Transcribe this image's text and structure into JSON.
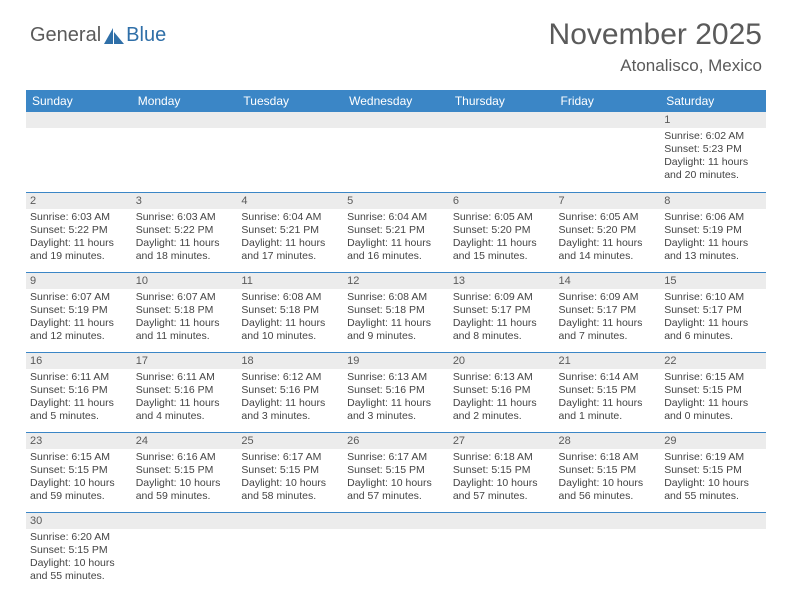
{
  "brand": {
    "part1": "General",
    "part2": "Blue"
  },
  "title": "November 2025",
  "location": "Atonalisco, Mexico",
  "colors": {
    "header_bg": "#3b86c6",
    "header_text": "#ffffff",
    "daynum_bg": "#ececec",
    "text": "#5a5a5a",
    "rule": "#3b86c6"
  },
  "weekdays": [
    "Sunday",
    "Monday",
    "Tuesday",
    "Wednesday",
    "Thursday",
    "Friday",
    "Saturday"
  ],
  "weeks": [
    [
      null,
      null,
      null,
      null,
      null,
      null,
      {
        "n": "1",
        "sr": "6:02 AM",
        "ss": "5:23 PM",
        "dl": "11 hours and 20 minutes."
      }
    ],
    [
      {
        "n": "2",
        "sr": "6:03 AM",
        "ss": "5:22 PM",
        "dl": "11 hours and 19 minutes."
      },
      {
        "n": "3",
        "sr": "6:03 AM",
        "ss": "5:22 PM",
        "dl": "11 hours and 18 minutes."
      },
      {
        "n": "4",
        "sr": "6:04 AM",
        "ss": "5:21 PM",
        "dl": "11 hours and 17 minutes."
      },
      {
        "n": "5",
        "sr": "6:04 AM",
        "ss": "5:21 PM",
        "dl": "11 hours and 16 minutes."
      },
      {
        "n": "6",
        "sr": "6:05 AM",
        "ss": "5:20 PM",
        "dl": "11 hours and 15 minutes."
      },
      {
        "n": "7",
        "sr": "6:05 AM",
        "ss": "5:20 PM",
        "dl": "11 hours and 14 minutes."
      },
      {
        "n": "8",
        "sr": "6:06 AM",
        "ss": "5:19 PM",
        "dl": "11 hours and 13 minutes."
      }
    ],
    [
      {
        "n": "9",
        "sr": "6:07 AM",
        "ss": "5:19 PM",
        "dl": "11 hours and 12 minutes."
      },
      {
        "n": "10",
        "sr": "6:07 AM",
        "ss": "5:18 PM",
        "dl": "11 hours and 11 minutes."
      },
      {
        "n": "11",
        "sr": "6:08 AM",
        "ss": "5:18 PM",
        "dl": "11 hours and 10 minutes."
      },
      {
        "n": "12",
        "sr": "6:08 AM",
        "ss": "5:18 PM",
        "dl": "11 hours and 9 minutes."
      },
      {
        "n": "13",
        "sr": "6:09 AM",
        "ss": "5:17 PM",
        "dl": "11 hours and 8 minutes."
      },
      {
        "n": "14",
        "sr": "6:09 AM",
        "ss": "5:17 PM",
        "dl": "11 hours and 7 minutes."
      },
      {
        "n": "15",
        "sr": "6:10 AM",
        "ss": "5:17 PM",
        "dl": "11 hours and 6 minutes."
      }
    ],
    [
      {
        "n": "16",
        "sr": "6:11 AM",
        "ss": "5:16 PM",
        "dl": "11 hours and 5 minutes."
      },
      {
        "n": "17",
        "sr": "6:11 AM",
        "ss": "5:16 PM",
        "dl": "11 hours and 4 minutes."
      },
      {
        "n": "18",
        "sr": "6:12 AM",
        "ss": "5:16 PM",
        "dl": "11 hours and 3 minutes."
      },
      {
        "n": "19",
        "sr": "6:13 AM",
        "ss": "5:16 PM",
        "dl": "11 hours and 3 minutes."
      },
      {
        "n": "20",
        "sr": "6:13 AM",
        "ss": "5:16 PM",
        "dl": "11 hours and 2 minutes."
      },
      {
        "n": "21",
        "sr": "6:14 AM",
        "ss": "5:15 PM",
        "dl": "11 hours and 1 minute."
      },
      {
        "n": "22",
        "sr": "6:15 AM",
        "ss": "5:15 PM",
        "dl": "11 hours and 0 minutes."
      }
    ],
    [
      {
        "n": "23",
        "sr": "6:15 AM",
        "ss": "5:15 PM",
        "dl": "10 hours and 59 minutes."
      },
      {
        "n": "24",
        "sr": "6:16 AM",
        "ss": "5:15 PM",
        "dl": "10 hours and 59 minutes."
      },
      {
        "n": "25",
        "sr": "6:17 AM",
        "ss": "5:15 PM",
        "dl": "10 hours and 58 minutes."
      },
      {
        "n": "26",
        "sr": "6:17 AM",
        "ss": "5:15 PM",
        "dl": "10 hours and 57 minutes."
      },
      {
        "n": "27",
        "sr": "6:18 AM",
        "ss": "5:15 PM",
        "dl": "10 hours and 57 minutes."
      },
      {
        "n": "28",
        "sr": "6:18 AM",
        "ss": "5:15 PM",
        "dl": "10 hours and 56 minutes."
      },
      {
        "n": "29",
        "sr": "6:19 AM",
        "ss": "5:15 PM",
        "dl": "10 hours and 55 minutes."
      }
    ],
    [
      {
        "n": "30",
        "sr": "6:20 AM",
        "ss": "5:15 PM",
        "dl": "10 hours and 55 minutes."
      },
      null,
      null,
      null,
      null,
      null,
      null
    ]
  ],
  "labels": {
    "sunrise": "Sunrise: ",
    "sunset": "Sunset: ",
    "daylight": "Daylight: "
  }
}
